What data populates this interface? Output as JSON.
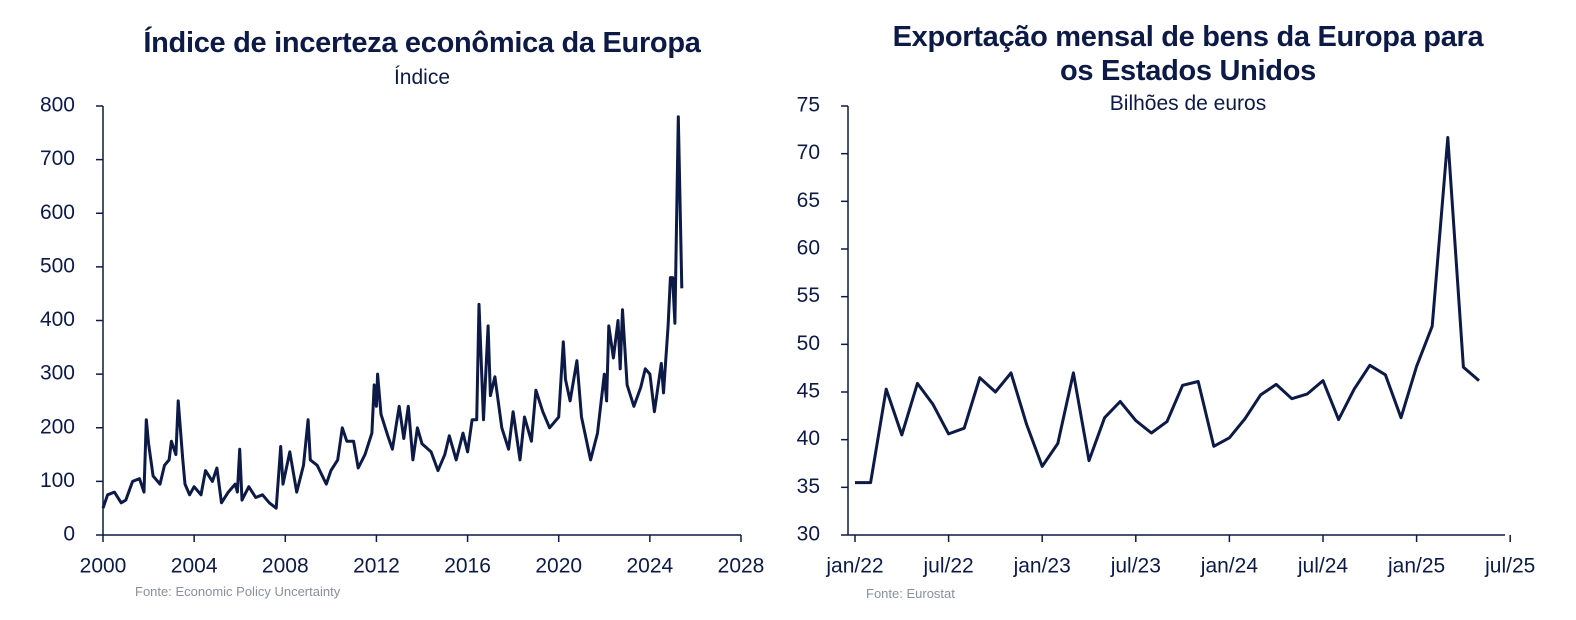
{
  "chart_data": [
    {
      "type": "line",
      "title": "Índice de incerteza econômica da Europa",
      "subtitle": "Índice",
      "source": "Fonte: Economic Policy Uncertainty",
      "xlim": [
        2000,
        2028
      ],
      "xticks": [
        2000,
        2004,
        2008,
        2012,
        2016,
        2020,
        2024,
        2028
      ],
      "ylim": [
        0,
        800
      ],
      "yticks": [
        0,
        100,
        200,
        300,
        400,
        500,
        600,
        700,
        800
      ],
      "grid": false,
      "x": [
        2000.0,
        2000.2,
        2000.5,
        2000.8,
        2001.0,
        2001.3,
        2001.6,
        2001.8,
        2001.9,
        2002.0,
        2002.2,
        2002.5,
        2002.7,
        2002.9,
        2003.0,
        2003.2,
        2003.3,
        2003.5,
        2003.6,
        2003.8,
        2004.0,
        2004.3,
        2004.5,
        2004.8,
        2005.0,
        2005.2,
        2005.5,
        2005.8,
        2005.9,
        2006.0,
        2006.1,
        2006.4,
        2006.7,
        2007.0,
        2007.3,
        2007.6,
        2007.8,
        2007.9,
        2008.2,
        2008.5,
        2008.8,
        2009.0,
        2009.1,
        2009.4,
        2009.8,
        2010.0,
        2010.3,
        2010.5,
        2010.7,
        2011.0,
        2011.2,
        2011.5,
        2011.8,
        2011.9,
        2012.0,
        2012.05,
        2012.2,
        2012.5,
        2012.7,
        2013.0,
        2013.2,
        2013.4,
        2013.6,
        2013.8,
        2014.0,
        2014.4,
        2014.7,
        2015.0,
        2015.2,
        2015.5,
        2015.8,
        2016.0,
        2016.2,
        2016.4,
        2016.5,
        2016.7,
        2016.9,
        2017.0,
        2017.2,
        2017.5,
        2017.8,
        2018.0,
        2018.3,
        2018.5,
        2018.8,
        2019.0,
        2019.3,
        2019.6,
        2020.0,
        2020.2,
        2020.3,
        2020.5,
        2020.8,
        2021.0,
        2021.3,
        2021.4,
        2021.7,
        2022.0,
        2022.1,
        2022.2,
        2022.4,
        2022.6,
        2022.7,
        2022.8,
        2023.0,
        2023.3,
        2023.6,
        2023.8,
        2024.0,
        2024.2,
        2024.5,
        2024.6,
        2024.8,
        2024.9,
        2025.0,
        2025.1,
        2025.25,
        2025.4
      ],
      "series": [
        {
          "color": "#0c1a45",
          "values": [
            50,
            75,
            80,
            60,
            65,
            100,
            105,
            80,
            215,
            170,
            110,
            95,
            130,
            140,
            175,
            150,
            250,
            140,
            95,
            75,
            90,
            75,
            120,
            100,
            125,
            60,
            80,
            95,
            80,
            160,
            65,
            90,
            70,
            75,
            60,
            50,
            165,
            95,
            155,
            80,
            130,
            215,
            140,
            130,
            95,
            120,
            140,
            200,
            175,
            175,
            125,
            150,
            190,
            280,
            240,
            300,
            225,
            185,
            160,
            240,
            180,
            240,
            140,
            200,
            170,
            155,
            120,
            150,
            185,
            140,
            190,
            155,
            215,
            215,
            430,
            215,
            390,
            260,
            295,
            200,
            160,
            230,
            140,
            220,
            175,
            270,
            230,
            200,
            220,
            360,
            290,
            250,
            325,
            220,
            160,
            140,
            190,
            300,
            250,
            390,
            330,
            400,
            310,
            420,
            280,
            240,
            275,
            310,
            300,
            230,
            320,
            265,
            390,
            480,
            480,
            395,
            780,
            460
          ]
        }
      ]
    },
    {
      "type": "line",
      "title": "Exportação mensal de bens da Europa para os Estados Unidos",
      "subtitle": "Bilhões de euros",
      "source": "Fonte: Eurostat",
      "categories": [
        "jan/22",
        null,
        null,
        null,
        null,
        null,
        "jul/22",
        null,
        null,
        null,
        null,
        null,
        "jan/23",
        null,
        null,
        null,
        null,
        null,
        "jul/23",
        null,
        null,
        null,
        null,
        null,
        "jan/24",
        null,
        null,
        null,
        null,
        null,
        "jul/24",
        null,
        null,
        null,
        null,
        null,
        "jan/25",
        null,
        null,
        null,
        null,
        null,
        "jul/25"
      ],
      "ylim": [
        30,
        75
      ],
      "yticks": [
        30,
        35,
        40,
        45,
        50,
        55,
        60,
        65,
        70,
        75
      ],
      "grid": false,
      "series": [
        {
          "color": "#0c1a45",
          "values": [
            35.5,
            35.5,
            45.3,
            40.5,
            45.9,
            43.7,
            40.6,
            41.2,
            46.5,
            45.0,
            47.0,
            41.6,
            37.2,
            39.6,
            47.0,
            37.8,
            42.3,
            44.0,
            42.0,
            40.7,
            41.9,
            45.7,
            46.1,
            39.3,
            40.2,
            42.2,
            44.7,
            45.8,
            44.3,
            44.8,
            46.2,
            42.1,
            45.3,
            47.8,
            46.8,
            42.3,
            47.7,
            51.9,
            71.7,
            47.6,
            46.2,
            null,
            null
          ]
        }
      ]
    }
  ]
}
